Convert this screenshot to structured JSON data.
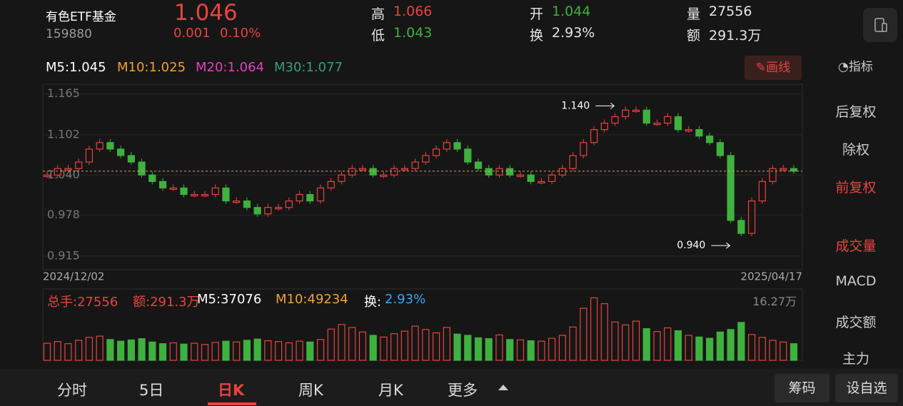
{
  "header": {
    "name": "有色ETF基金",
    "code": "159880",
    "price": "1.046",
    "change": "0.001",
    "change_pct": "0.10%",
    "stats": [
      {
        "label": "高",
        "value": "1.066",
        "color": "#e8433f"
      },
      {
        "label": "低",
        "value": "1.043",
        "color": "#3fb13f"
      },
      {
        "label": "开",
        "value": "1.044",
        "color": "#3fb13f"
      },
      {
        "label": "换",
        "value": "2.93%",
        "color": "#e6e6e6"
      },
      {
        "label": "量",
        "value": "27556",
        "color": "#e6e6e6"
      },
      {
        "label": "额",
        "value": "291.3万",
        "color": "#e6e6e6"
      }
    ]
  },
  "ma_legend": [
    {
      "text": "M5:1.045",
      "color": "#ffffff"
    },
    {
      "text": "M10:1.025",
      "color": "#f0a030"
    },
    {
      "text": "M20:1.064",
      "color": "#e040c0"
    },
    {
      "text": "M30:1.077",
      "color": "#30a080"
    }
  ],
  "draw_button": "画线",
  "sidebar": {
    "indicator": "指标",
    "items": [
      {
        "text": "后复权",
        "color": "#cccccc"
      },
      {
        "text": "除权",
        "color": "#cccccc"
      },
      {
        "text": "前复权",
        "color": "#e8433f"
      },
      {
        "text": "成交量",
        "color": "#e8433f"
      },
      {
        "text": "MACD",
        "color": "#cccccc"
      },
      {
        "text": "成交额",
        "color": "#cccccc"
      },
      {
        "text": "主力",
        "color": "#cccccc"
      }
    ]
  },
  "chart_data": {
    "type": "candlestick",
    "ylim": [
      0.894,
      1.18
    ],
    "yticks": [
      1.165,
      1.102,
      {
        "value": 1.04,
        "label": "1.040"
      },
      0.978,
      0.915
    ],
    "start_date": "2024/12/02",
    "end_date": "2025/04/17",
    "annotations": [
      {
        "text": "1.140",
        "value": 1.14,
        "index": 55
      },
      {
        "text": "0.940",
        "value": 0.94,
        "index": 66
      }
    ],
    "up_color": "#e8433f",
    "down_color": "#3fb13f",
    "candles": [
      1.04,
      1.05,
      1.05,
      1.06,
      1.08,
      1.09,
      1.08,
      1.07,
      1.06,
      1.04,
      1.03,
      1.02,
      1.02,
      1.01,
      1.01,
      1.01,
      1.02,
      1.0,
      1.0,
      0.99,
      0.98,
      0.99,
      0.99,
      1.0,
      1.01,
      1.0,
      1.02,
      1.03,
      1.04,
      1.05,
      1.05,
      1.04,
      1.04,
      1.05,
      1.05,
      1.06,
      1.07,
      1.08,
      1.09,
      1.08,
      1.06,
      1.05,
      1.04,
      1.05,
      1.04,
      1.04,
      1.03,
      1.03,
      1.04,
      1.05,
      1.07,
      1.09,
      1.11,
      1.12,
      1.13,
      1.14,
      1.14,
      1.12,
      1.12,
      1.13,
      1.11,
      1.11,
      1.1,
      1.09,
      1.07,
      0.97,
      0.95,
      1.0,
      1.03,
      1.05,
      1.05,
      1.046
    ]
  },
  "volume": {
    "summary": [
      {
        "text": "总手:27556",
        "color": "#e8433f"
      },
      {
        "text": "额:291.3万",
        "color": "#e8433f"
      },
      {
        "text": "M5:37076",
        "color": "#ffffff"
      },
      {
        "text": "M10:49234",
        "color": "#f0a030"
      },
      {
        "text": "换:",
        "color": "#ffffff"
      },
      {
        "text": "2.93%",
        "color": "#3da5f4"
      }
    ],
    "max": {
      "value": 16.27,
      "label": "16.27万"
    },
    "values": [
      4.1,
      4.5,
      4.0,
      4.8,
      5.5,
      5.8,
      5.0,
      4.6,
      4.9,
      5.2,
      4.4,
      4.0,
      4.2,
      3.9,
      4.1,
      3.8,
      4.3,
      4.6,
      4.4,
      4.8,
      5.1,
      4.7,
      4.5,
      4.2,
      4.6,
      4.4,
      5.0,
      7.5,
      8.6,
      7.9,
      6.8,
      6.0,
      5.6,
      6.4,
      7.0,
      8.2,
      7.4,
      6.6,
      7.9,
      6.3,
      6.0,
      5.4,
      5.2,
      6.1,
      5.0,
      4.9,
      4.7,
      4.6,
      5.3,
      6.0,
      8.0,
      12.5,
      15.0,
      13.6,
      9.2,
      8.5,
      9.4,
      7.6,
      6.9,
      7.8,
      7.1,
      6.0,
      5.6,
      5.3,
      6.8,
      7.4,
      9.1,
      6.2,
      5.5,
      4.8,
      4.4,
      4.0
    ]
  },
  "tabs": [
    {
      "text": "分时",
      "active": false
    },
    {
      "text": "5日",
      "active": false
    },
    {
      "text": "日K",
      "active": true
    },
    {
      "text": "周K",
      "active": false
    },
    {
      "text": "月K",
      "active": false
    },
    {
      "text": "更多",
      "active": false
    }
  ],
  "buttons": [
    "筹码",
    "设自选"
  ]
}
